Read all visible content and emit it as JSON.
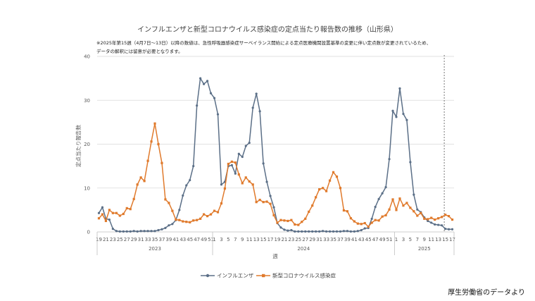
{
  "page": {
    "title": "インフルエンザと新型コロナウイルス感染症の定点当たり報告数の推移（山形県）",
    "note_line1": "※2025年第15週（4月7日～13日）以降の数値は、急性呼吸器感染症サーベイランス開始による定点医療機関設置基準の変更に伴い定点数が変更されているため、",
    "note_line2": "データの解釈には留意が必要となります。",
    "source": "厚生労働省のデータより"
  },
  "colors": {
    "influenza": "#5b6f87",
    "covid": "#e07a2c",
    "grid": "#d9d9d9",
    "axis": "#bfbfbf"
  },
  "chart_data": {
    "type": "line",
    "title": "インフルエンザと新型コロナウイルス感染症の定点当たり報告数の推移（山形県）",
    "xlabel": "週",
    "ylabel": "定点当たり報告数",
    "ylim": [
      0,
      40
    ],
    "yticks": [
      0,
      10,
      20,
      30,
      40
    ],
    "grid": true,
    "legend_position": "bottom",
    "year_groups": [
      {
        "label": "2023",
        "first_index": 0,
        "last_index": 32
      },
      {
        "label": "2024",
        "first_index": 33,
        "last_index": 84
      },
      {
        "label": "2025",
        "first_index": 85,
        "last_index": 101
      }
    ],
    "divider_after_week_label": "15",
    "divider_index": 99,
    "x_tick_labels": [
      "19",
      "21",
      "23",
      "25",
      "27",
      "29",
      "31",
      "33",
      "35",
      "37",
      "39",
      "41",
      "43",
      "45",
      "47",
      "49",
      "51",
      "1",
      "3",
      "5",
      "7",
      "9",
      "11",
      "13",
      "15",
      "17",
      "19",
      "21",
      "23",
      "25",
      "27",
      "29",
      "31",
      "33",
      "35",
      "37",
      "39",
      "41",
      "43",
      "45",
      "47",
      "49",
      "51",
      "1",
      "3",
      "5",
      "7",
      "9",
      "11",
      "13",
      "15",
      "17"
    ],
    "x_tick_indices": [
      0,
      2,
      4,
      6,
      8,
      10,
      12,
      14,
      16,
      18,
      20,
      22,
      24,
      26,
      28,
      30,
      32,
      33,
      35,
      37,
      39,
      41,
      43,
      45,
      47,
      49,
      51,
      53,
      55,
      57,
      59,
      61,
      63,
      65,
      67,
      69,
      71,
      73,
      75,
      77,
      79,
      81,
      83,
      85,
      87,
      89,
      91,
      93,
      95,
      97,
      99,
      101
    ],
    "series": [
      {
        "name": "インフルエンザ",
        "values": [
          4.3,
          5.6,
          3.0,
          2.8,
          0.7,
          0.2,
          0.1,
          0.1,
          0.1,
          0.1,
          0.2,
          0.1,
          0.2,
          0.2,
          0.2,
          0.2,
          0.2,
          0.4,
          0.6,
          0.9,
          1.5,
          1.8,
          2.7,
          5.0,
          8.3,
          10.6,
          11.8,
          15.0,
          28.8,
          35.0,
          33.7,
          34.4,
          31.6,
          30.5,
          26.8,
          10.8,
          11.4,
          15.0,
          15.2,
          13.3,
          17.8,
          17.1,
          19.6,
          20.3,
          28.3,
          31.5,
          27.5,
          15.6,
          11.4,
          8.2,
          5.6,
          2.0,
          1.0,
          0.5,
          0.3,
          0.4,
          0.1,
          0.1,
          0.1,
          0.1,
          0.1,
          0.1,
          0.1,
          0.1,
          0.2,
          0.1,
          0.1,
          0.1,
          0.1,
          0.1,
          0.2,
          0.2,
          0.1,
          0.1,
          0.2,
          0.4,
          0.8,
          0.9,
          3.0,
          5.7,
          7.5,
          8.8,
          10.2,
          16.6,
          27.6,
          26.2,
          32.7,
          26.9,
          25.5,
          15.9,
          8.5,
          5.1,
          4.5,
          3.3,
          2.5,
          2.1,
          1.7,
          1.6,
          1.5,
          0.7,
          0.6,
          0.6
        ]
      },
      {
        "name": "新型コロナウイルス感染症",
        "values": [
          3.1,
          4.0,
          2.5,
          5.0,
          4.3,
          4.3,
          3.7,
          4.1,
          5.4,
          5.2,
          7.5,
          10.8,
          12.4,
          11.6,
          16.2,
          20.6,
          24.7,
          20.0,
          15.7,
          7.4,
          6.6,
          4.8,
          2.8,
          2.7,
          2.4,
          2.3,
          2.2,
          2.6,
          2.7,
          3.0,
          4.0,
          3.6,
          4.0,
          4.8,
          4.5,
          6.5,
          9.9,
          15.5,
          16.0,
          15.8,
          13.1,
          11.1,
          12.4,
          11.5,
          10.8,
          6.8,
          7.3,
          6.8,
          6.9,
          6.4,
          3.8,
          2.1,
          2.7,
          2.6,
          2.5,
          2.7,
          1.7,
          1.6,
          2.3,
          3.0,
          4.6,
          6.0,
          7.9,
          9.7,
          10.0,
          9.3,
          11.7,
          13.6,
          12.6,
          10.0,
          4.9,
          4.7,
          3.1,
          2.4,
          1.9,
          1.8,
          2.0,
          1.2,
          2.1,
          2.7,
          2.6,
          3.5,
          3.8,
          5.1,
          7.4,
          5.0,
          7.6,
          6.0,
          6.6,
          5.5,
          4.7,
          3.7,
          4.3,
          3.0,
          2.9,
          3.2,
          2.8,
          3.1,
          3.4,
          3.9,
          3.6,
          2.8
        ]
      }
    ]
  }
}
